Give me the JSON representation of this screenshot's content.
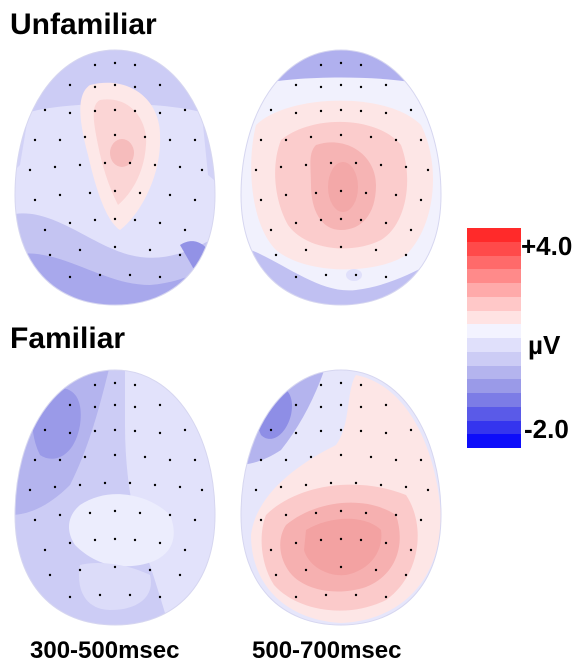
{
  "rows": [
    {
      "label": "Unfamiliar"
    },
    {
      "label": "Familiar"
    }
  ],
  "columns": [
    {
      "label": "300-500msec"
    },
    {
      "label": "500-700msec"
    }
  ],
  "colorbar": {
    "max_label": "+4.0",
    "unit_label": "µV",
    "min_label": "-2.0",
    "colors": [
      "#ff2a2a",
      "#ff4a4a",
      "#ff6a6a",
      "#ff8a8a",
      "#ffaaaa",
      "#ffc8c8",
      "#ffe3e3",
      "#f3f3ff",
      "#e0e0fb",
      "#ccccf5",
      "#b4b4ee",
      "#9a9ae8",
      "#7c7ce6",
      "#5a5ae8",
      "#3535ee",
      "#0d0dfa"
    ]
  }
}
